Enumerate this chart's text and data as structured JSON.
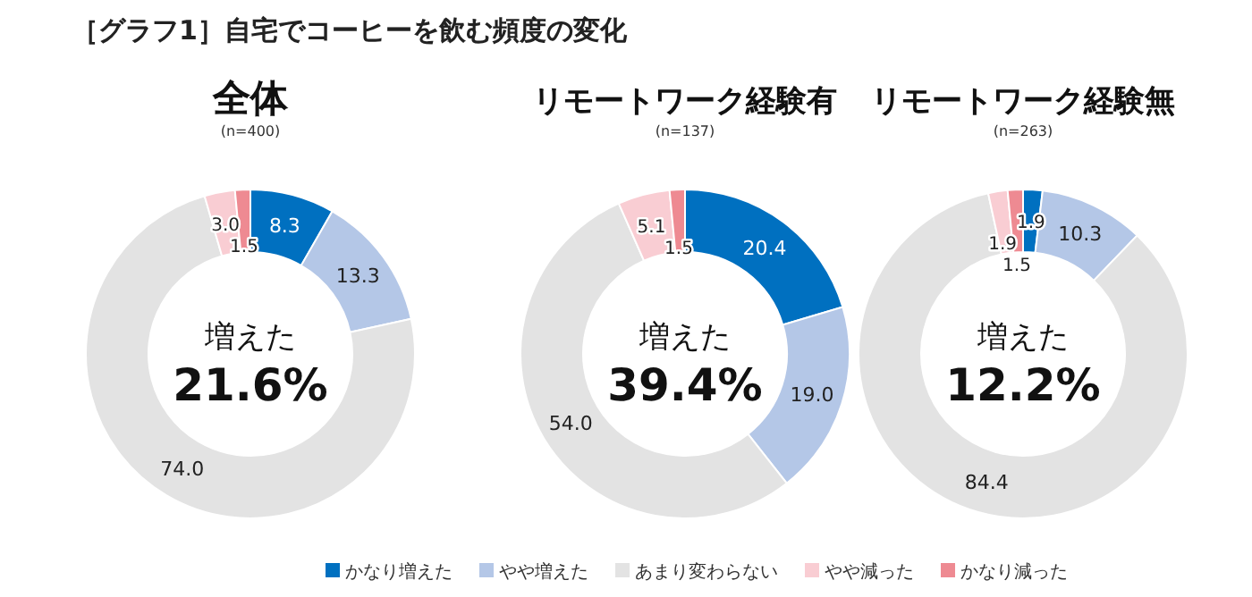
{
  "chart_data": [
    {
      "type": "donut",
      "title": "全体",
      "subtitle": "(n=400)",
      "categories": [
        null,
        null,
        null,
        null,
        null
      ],
      "values": [
        8.3,
        13.3,
        74.0,
        3.0,
        1.5
      ],
      "value_labels": [
        "8.3",
        "13.3",
        "74.0",
        "3.0",
        "1.5"
      ],
      "colors": [
        "#0070c0",
        "#b4c7e7",
        "#e3e3e3",
        "#f9cdd3",
        "#ee8a92"
      ],
      "annotations": [
        "増えた",
        "21.6%",
        "［グラフ1］自宅でコーヒーを飲む頻度の変化"
      ]
    },
    {
      "type": "donut",
      "title": "リモートワーク経験有",
      "subtitle": "(n=137)",
      "categories": [
        null,
        null,
        null,
        null,
        null
      ],
      "values": [
        20.4,
        19.0,
        54.0,
        5.1,
        1.5
      ],
      "value_labels": [
        "20.4",
        "19.0",
        "54.0",
        "5.1",
        "1.5"
      ],
      "colors": [
        "#0070c0",
        "#b4c7e7",
        "#e3e3e3",
        "#f9cdd3",
        "#ee8a92"
      ],
      "annotations": [
        "増えた",
        "39.4%"
      ]
    },
    {
      "type": "donut",
      "title": "リモートワーク経験無",
      "subtitle": "(n=263)",
      "categories": [
        "かなり増えた",
        "やや増えた",
        "あまり変わらない",
        "やや減った",
        "かなり減った"
      ],
      "values": [
        1.9,
        10.3,
        84.4,
        1.9,
        1.5
      ],
      "value_labels": [
        "1.9",
        "10.3",
        "84.4",
        "1.9",
        "1.5"
      ],
      "colors": [
        "#0070c0",
        "#b4c7e7",
        "#e3e3e3",
        "#f9cdd3",
        "#ee8a92"
      ],
      "legend": "bottom",
      "annotations": [
        "増えた",
        "12.2%"
      ]
    }
  ]
}
